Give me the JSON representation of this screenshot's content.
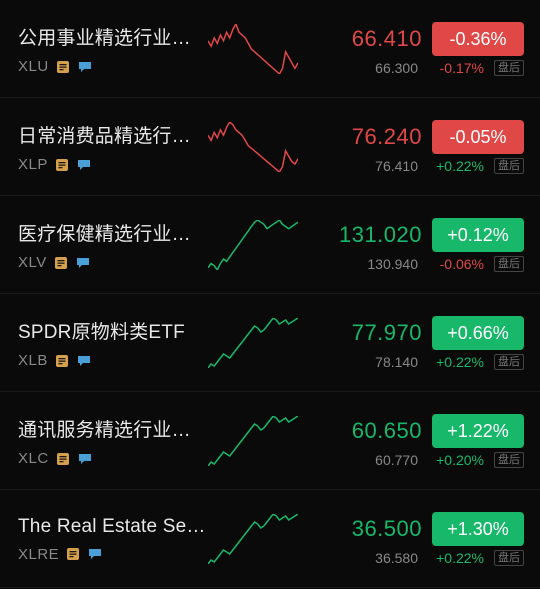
{
  "colors": {
    "up": "#18b86b",
    "down": "#e04848",
    "neutral": "#888888",
    "noteIcon": "#d6a04a",
    "chatIcon": "#4aa0d6"
  },
  "afterHoursLabel": "盘后",
  "items": [
    {
      "name": "公用事业精选行业…",
      "symbol": "XLU",
      "price": "66.410",
      "pct": "-0.36%",
      "direction": "down",
      "afterPrice": "66.300",
      "afterPct": "-0.17%",
      "afterDir": "down",
      "spark": [
        32,
        30,
        33,
        31,
        34,
        32,
        35,
        33,
        36,
        38,
        35,
        34,
        33,
        31,
        29,
        28,
        27,
        26,
        25,
        24,
        23,
        22,
        21,
        20,
        22,
        28,
        26,
        24,
        22,
        24
      ]
    },
    {
      "name": "日常消费品精选行…",
      "symbol": "XLP",
      "price": "76.240",
      "pct": "-0.05%",
      "direction": "down",
      "afterPrice": "76.410",
      "afterPct": "+0.22%",
      "afterDir": "up",
      "spark": [
        30,
        28,
        31,
        29,
        32,
        30,
        33,
        35,
        34,
        32,
        31,
        30,
        28,
        26,
        25,
        24,
        23,
        22,
        21,
        20,
        19,
        18,
        17,
        16,
        18,
        24,
        22,
        20,
        19,
        21
      ]
    },
    {
      "name": "医疗保健精选行业…",
      "symbol": "XLV",
      "price": "131.020",
      "pct": "+0.12%",
      "direction": "up",
      "afterPrice": "130.940",
      "afterPct": "-0.06%",
      "afterDir": "down",
      "spark": [
        18,
        20,
        19,
        17,
        20,
        22,
        21,
        23,
        25,
        27,
        29,
        31,
        33,
        35,
        37,
        39,
        40,
        39,
        38,
        36,
        37,
        38,
        39,
        40,
        38,
        37,
        36,
        37,
        38,
        39
      ]
    },
    {
      "name": "SPDR原物料类ETF",
      "symbol": "XLB",
      "price": "77.970",
      "pct": "+0.66%",
      "direction": "up",
      "afterPrice": "78.140",
      "afterPct": "+0.22%",
      "afterDir": "up",
      "spark": [
        15,
        17,
        16,
        18,
        20,
        22,
        21,
        20,
        22,
        24,
        26,
        28,
        30,
        32,
        34,
        36,
        35,
        33,
        34,
        36,
        38,
        40,
        39,
        37,
        38,
        39,
        37,
        38,
        39,
        40
      ]
    },
    {
      "name": "通讯服务精选行业…",
      "symbol": "XLC",
      "price": "60.650",
      "pct": "+1.22%",
      "direction": "up",
      "afterPrice": "60.770",
      "afterPct": "+0.20%",
      "afterDir": "up",
      "spark": [
        16,
        18,
        17,
        19,
        21,
        23,
        22,
        21,
        23,
        25,
        27,
        29,
        31,
        33,
        35,
        37,
        36,
        34,
        35,
        37,
        39,
        41,
        40,
        38,
        39,
        40,
        38,
        39,
        40,
        41
      ]
    },
    {
      "name": "The Real Estate Se…",
      "symbol": "XLRE",
      "price": "36.500",
      "pct": "+1.30%",
      "direction": "up",
      "afterPrice": "36.580",
      "afterPct": "+0.22%",
      "afterDir": "up",
      "spark": [
        14,
        16,
        15,
        17,
        19,
        21,
        20,
        19,
        21,
        23,
        25,
        27,
        29,
        31,
        33,
        35,
        34,
        32,
        33,
        35,
        37,
        39,
        38,
        36,
        37,
        38,
        36,
        37,
        38,
        39
      ]
    }
  ]
}
